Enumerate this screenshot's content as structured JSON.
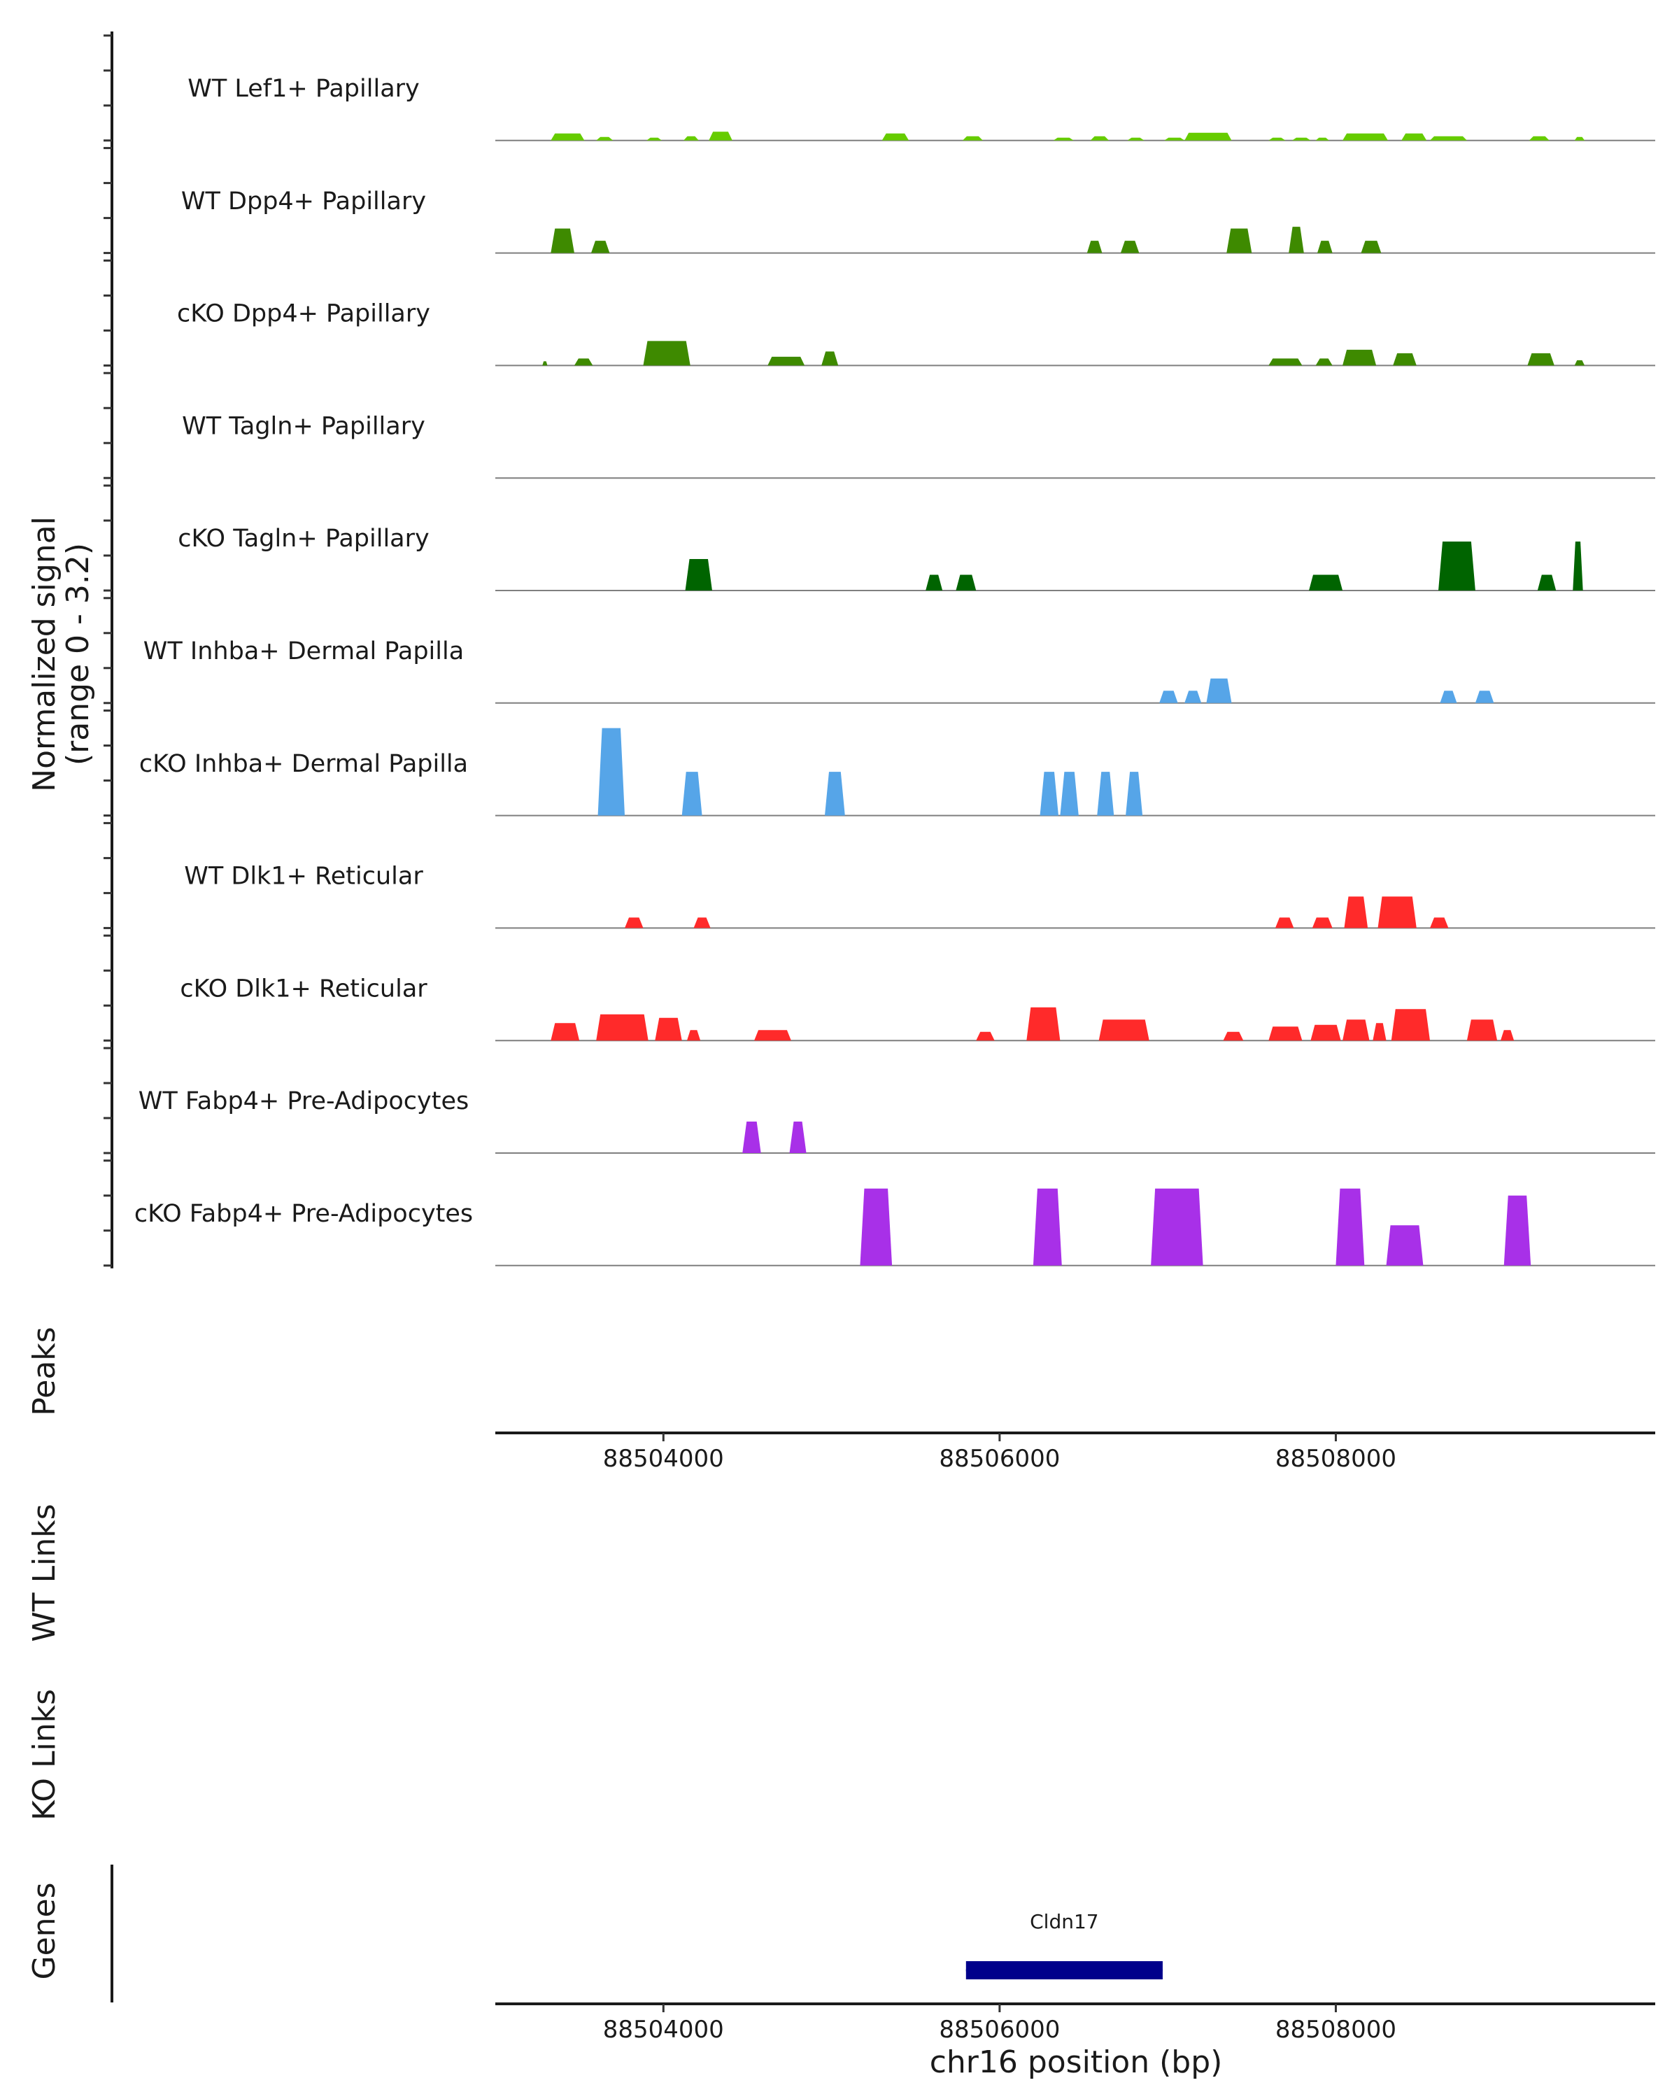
{
  "chart_data": {
    "type": "area",
    "title": "",
    "region": "chr16",
    "xlim": [
      88503000,
      88509900
    ],
    "ylabel": "Normalized signal\n(range 0 - 3.2)",
    "ylim": [
      0,
      3.2
    ],
    "xlabel": "chr16 position (bp)",
    "x_ticks": [
      88504000,
      88506000,
      88508000
    ],
    "x_tick_labels": [
      "88504000",
      "88506000",
      "88508000"
    ],
    "side_labels": {
      "peaks": "Peaks",
      "wt_links": "WT Links",
      "ko_links": "KO Links",
      "genes": "Genes"
    },
    "series": [
      {
        "name": "WT Lef1+ Papillary",
        "color": "#66cc00",
        "segments": [
          {
            "start": 88503330,
            "end": 88503530,
            "height": 0.2
          },
          {
            "start": 88503600,
            "end": 88503700,
            "height": 0.1
          },
          {
            "start": 88503900,
            "end": 88503990,
            "height": 0.08
          },
          {
            "start": 88504120,
            "end": 88504210,
            "height": 0.12
          },
          {
            "start": 88504270,
            "end": 88504410,
            "height": 0.25
          },
          {
            "start": 88505300,
            "end": 88505460,
            "height": 0.2
          },
          {
            "start": 88505780,
            "end": 88505900,
            "height": 0.12
          },
          {
            "start": 88506320,
            "end": 88506440,
            "height": 0.08
          },
          {
            "start": 88506540,
            "end": 88506650,
            "height": 0.12
          },
          {
            "start": 88506760,
            "end": 88506860,
            "height": 0.08
          },
          {
            "start": 88506980,
            "end": 88507100,
            "height": 0.08
          },
          {
            "start": 88507100,
            "end": 88507380,
            "height": 0.22
          },
          {
            "start": 88507600,
            "end": 88507700,
            "height": 0.08
          },
          {
            "start": 88507740,
            "end": 88507850,
            "height": 0.08
          },
          {
            "start": 88507880,
            "end": 88507960,
            "height": 0.08
          },
          {
            "start": 88508040,
            "end": 88508310,
            "height": 0.2
          },
          {
            "start": 88508390,
            "end": 88508540,
            "height": 0.2
          },
          {
            "start": 88508560,
            "end": 88508780,
            "height": 0.12
          },
          {
            "start": 88509150,
            "end": 88509270,
            "height": 0.12
          },
          {
            "start": 88509420,
            "end": 88509480,
            "height": 0.1
          }
        ]
      },
      {
        "name": "WT Dpp4+ Papillary",
        "color": "#3e8a00",
        "segments": [
          {
            "start": 88503330,
            "end": 88503470,
            "height": 0.7
          },
          {
            "start": 88503570,
            "end": 88503680,
            "height": 0.35
          },
          {
            "start": 88506520,
            "end": 88506610,
            "height": 0.35
          },
          {
            "start": 88506720,
            "end": 88506830,
            "height": 0.35
          },
          {
            "start": 88507350,
            "end": 88507500,
            "height": 0.7
          },
          {
            "start": 88507720,
            "end": 88507810,
            "height": 0.75
          },
          {
            "start": 88507890,
            "end": 88507980,
            "height": 0.35
          },
          {
            "start": 88508150,
            "end": 88508270,
            "height": 0.35
          }
        ]
      },
      {
        "name": "cKO Dpp4+ Papillary",
        "color": "#3e8a00",
        "segments": [
          {
            "start": 88503280,
            "end": 88503310,
            "height": 0.12
          },
          {
            "start": 88503470,
            "end": 88503580,
            "height": 0.2
          },
          {
            "start": 88503880,
            "end": 88504160,
            "height": 0.7
          },
          {
            "start": 88504620,
            "end": 88504840,
            "height": 0.25
          },
          {
            "start": 88504940,
            "end": 88505040,
            "height": 0.4
          },
          {
            "start": 88507600,
            "end": 88507800,
            "height": 0.2
          },
          {
            "start": 88507880,
            "end": 88507980,
            "height": 0.2
          },
          {
            "start": 88508040,
            "end": 88508240,
            "height": 0.45
          },
          {
            "start": 88508340,
            "end": 88508480,
            "height": 0.35
          },
          {
            "start": 88509140,
            "end": 88509300,
            "height": 0.35
          },
          {
            "start": 88509420,
            "end": 88509480,
            "height": 0.15
          }
        ]
      },
      {
        "name": "WT Tagln+ Papillary",
        "color": "#006400",
        "segments": []
      },
      {
        "name": "cKO Tagln+ Papillary",
        "color": "#006400",
        "segments": [
          {
            "start": 88504130,
            "end": 88504290,
            "height": 0.9
          },
          {
            "start": 88505560,
            "end": 88505660,
            "height": 0.45
          },
          {
            "start": 88505740,
            "end": 88505860,
            "height": 0.45
          },
          {
            "start": 88507840,
            "end": 88508040,
            "height": 0.45
          },
          {
            "start": 88508610,
            "end": 88508830,
            "height": 1.4
          },
          {
            "start": 88509200,
            "end": 88509310,
            "height": 0.45
          },
          {
            "start": 88509410,
            "end": 88509470,
            "height": 1.4
          }
        ]
      },
      {
        "name": "WT Inhba+ Dermal Papilla",
        "color": "#56a5e8",
        "segments": [
          {
            "start": 88506950,
            "end": 88507060,
            "height": 0.35
          },
          {
            "start": 88507100,
            "end": 88507200,
            "height": 0.35
          },
          {
            "start": 88507230,
            "end": 88507380,
            "height": 0.7
          },
          {
            "start": 88508620,
            "end": 88508720,
            "height": 0.35
          },
          {
            "start": 88508830,
            "end": 88508940,
            "height": 0.35
          }
        ]
      },
      {
        "name": "cKO Inhba+ Dermal Papilla",
        "color": "#56a5e8",
        "segments": [
          {
            "start": 88503610,
            "end": 88503770,
            "height": 2.5
          },
          {
            "start": 88504110,
            "end": 88504230,
            "height": 1.25
          },
          {
            "start": 88504960,
            "end": 88505080,
            "height": 1.25
          },
          {
            "start": 88506240,
            "end": 88506350,
            "height": 1.25
          },
          {
            "start": 88506360,
            "end": 88506470,
            "height": 1.25
          },
          {
            "start": 88506580,
            "end": 88506680,
            "height": 1.25
          },
          {
            "start": 88506750,
            "end": 88506850,
            "height": 1.25
          }
        ]
      },
      {
        "name": "WT Dlk1+ Reticular",
        "color": "#ff2a2a",
        "segments": [
          {
            "start": 88503770,
            "end": 88503880,
            "height": 0.3
          },
          {
            "start": 88504180,
            "end": 88504280,
            "height": 0.3
          },
          {
            "start": 88507640,
            "end": 88507750,
            "height": 0.3
          },
          {
            "start": 88507860,
            "end": 88507980,
            "height": 0.3
          },
          {
            "start": 88508050,
            "end": 88508190,
            "height": 0.9
          },
          {
            "start": 88508250,
            "end": 88508480,
            "height": 0.9
          },
          {
            "start": 88508560,
            "end": 88508670,
            "height": 0.3
          }
        ]
      },
      {
        "name": "cKO Dlk1+ Reticular",
        "color": "#ff2a2a",
        "segments": [
          {
            "start": 88503330,
            "end": 88503500,
            "height": 0.5
          },
          {
            "start": 88503600,
            "end": 88503910,
            "height": 0.75
          },
          {
            "start": 88503950,
            "end": 88504110,
            "height": 0.65
          },
          {
            "start": 88504140,
            "end": 88504220,
            "height": 0.3
          },
          {
            "start": 88504540,
            "end": 88504760,
            "height": 0.3
          },
          {
            "start": 88505860,
            "end": 88505970,
            "height": 0.25
          },
          {
            "start": 88506160,
            "end": 88506360,
            "height": 0.95
          },
          {
            "start": 88506590,
            "end": 88506890,
            "height": 0.6
          },
          {
            "start": 88507330,
            "end": 88507450,
            "height": 0.25
          },
          {
            "start": 88507600,
            "end": 88507800,
            "height": 0.4
          },
          {
            "start": 88507850,
            "end": 88508030,
            "height": 0.45
          },
          {
            "start": 88508040,
            "end": 88508200,
            "height": 0.6
          },
          {
            "start": 88508220,
            "end": 88508300,
            "height": 0.5
          },
          {
            "start": 88508330,
            "end": 88508560,
            "height": 0.9
          },
          {
            "start": 88508780,
            "end": 88508960,
            "height": 0.6
          },
          {
            "start": 88508980,
            "end": 88509060,
            "height": 0.3
          }
        ]
      },
      {
        "name": "WT Fabp4+ Pre-Adipocytes",
        "color": "#a830e8",
        "segments": [
          {
            "start": 88504470,
            "end": 88504580,
            "height": 0.9
          },
          {
            "start": 88504750,
            "end": 88504850,
            "height": 0.9
          }
        ]
      },
      {
        "name": "cKO Fabp4+ Pre-Adipocytes",
        "color": "#a830e8",
        "segments": [
          {
            "start": 88505170,
            "end": 88505360,
            "height": 2.2
          },
          {
            "start": 88506200,
            "end": 88506370,
            "height": 2.2
          },
          {
            "start": 88506900,
            "end": 88507210,
            "height": 2.2
          },
          {
            "start": 88508000,
            "end": 88508170,
            "height": 2.2
          },
          {
            "start": 88508300,
            "end": 88508520,
            "height": 1.15
          },
          {
            "start": 88509000,
            "end": 88509160,
            "height": 2.0
          }
        ]
      }
    ],
    "genes": [
      {
        "name": "Cldn17",
        "start": 88505800,
        "end": 88506970,
        "color": "#00008b"
      }
    ]
  }
}
